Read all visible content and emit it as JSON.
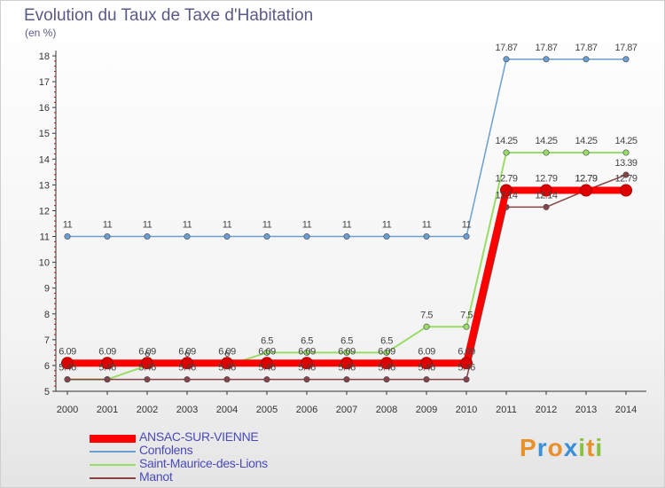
{
  "title": "Evolution du Taux de Taxe d'Habitation",
  "unit": "(en %)",
  "logo": {
    "text": "Proxiti",
    "letters": [
      "P",
      "r",
      "o",
      "x",
      "i",
      "t",
      "i"
    ],
    "colors": [
      "#e8902a",
      "#3a8fd8",
      "#e8902a",
      "#3a8fd8",
      "#88c040",
      "#e8902a",
      "#88c040"
    ]
  },
  "chart_data": {
    "type": "line",
    "x": [
      "2000",
      "2001",
      "2002",
      "2003",
      "2004",
      "2005",
      "2006",
      "2007",
      "2008",
      "2009",
      "2010",
      "2011",
      "2012",
      "2013",
      "2014"
    ],
    "ylim": [
      5,
      18
    ],
    "yticks": [
      5,
      6,
      7,
      8,
      9,
      10,
      11,
      12,
      13,
      14,
      15,
      16,
      17,
      18
    ],
    "grid": false,
    "legend_position": "bottom-left",
    "series": [
      {
        "name": "ANSAC-SUR-VIENNE",
        "color": "#ff0000",
        "width": 8,
        "values": [
          6.09,
          6.09,
          6.09,
          6.09,
          6.09,
          6.09,
          6.09,
          6.09,
          6.09,
          6.09,
          6.09,
          12.79,
          12.79,
          12.79,
          12.79
        ],
        "labels": [
          "6.09",
          "6.09",
          "6.09",
          "6.09",
          "6.09",
          "6.09",
          "6.09",
          "6.09",
          "6.09",
          "6.09",
          "6.09",
          "12.79",
          "12.79",
          "12.79",
          "12.79"
        ]
      },
      {
        "name": "Confolens",
        "color": "#6a9fd0",
        "width": 1.5,
        "values": [
          11,
          11,
          11,
          11,
          11,
          11,
          11,
          11,
          11,
          11,
          11,
          17.87,
          17.87,
          17.87,
          17.87
        ],
        "labels": [
          "11",
          "11",
          "11",
          "11",
          "11",
          "11",
          "11",
          "11",
          "11",
          "11",
          "11",
          "17.87",
          "17.87",
          "17.87",
          "17.87"
        ]
      },
      {
        "name": "Saint-Maurice-des-Lions",
        "color": "#99dd66",
        "width": 2,
        "values": [
          5.46,
          5.46,
          6,
          6,
          6,
          6.5,
          6.5,
          6.5,
          6.5,
          7.5,
          7.5,
          14.25,
          14.25,
          14.25,
          14.25
        ],
        "labels": [
          "",
          "",
          "6",
          "6",
          "6",
          "6.5",
          "6.5",
          "6.5",
          "6.5",
          "7.5",
          "7.5",
          "14.25",
          "14.25",
          "14.25",
          "14.25"
        ]
      },
      {
        "name": "Manot",
        "color": "#884444",
        "width": 1.5,
        "values": [
          5.46,
          5.46,
          5.46,
          5.46,
          5.46,
          5.46,
          5.46,
          5.46,
          5.46,
          5.46,
          5.46,
          12.14,
          12.14,
          12.79,
          13.39
        ],
        "labels": [
          "5.46",
          "5.46",
          "5.46",
          "5.46",
          "5.46",
          "5.46",
          "5.46",
          "5.46",
          "5.46",
          "5.46",
          "5.46",
          "12.14",
          "12.14",
          "12.79",
          "13.39"
        ]
      }
    ]
  }
}
